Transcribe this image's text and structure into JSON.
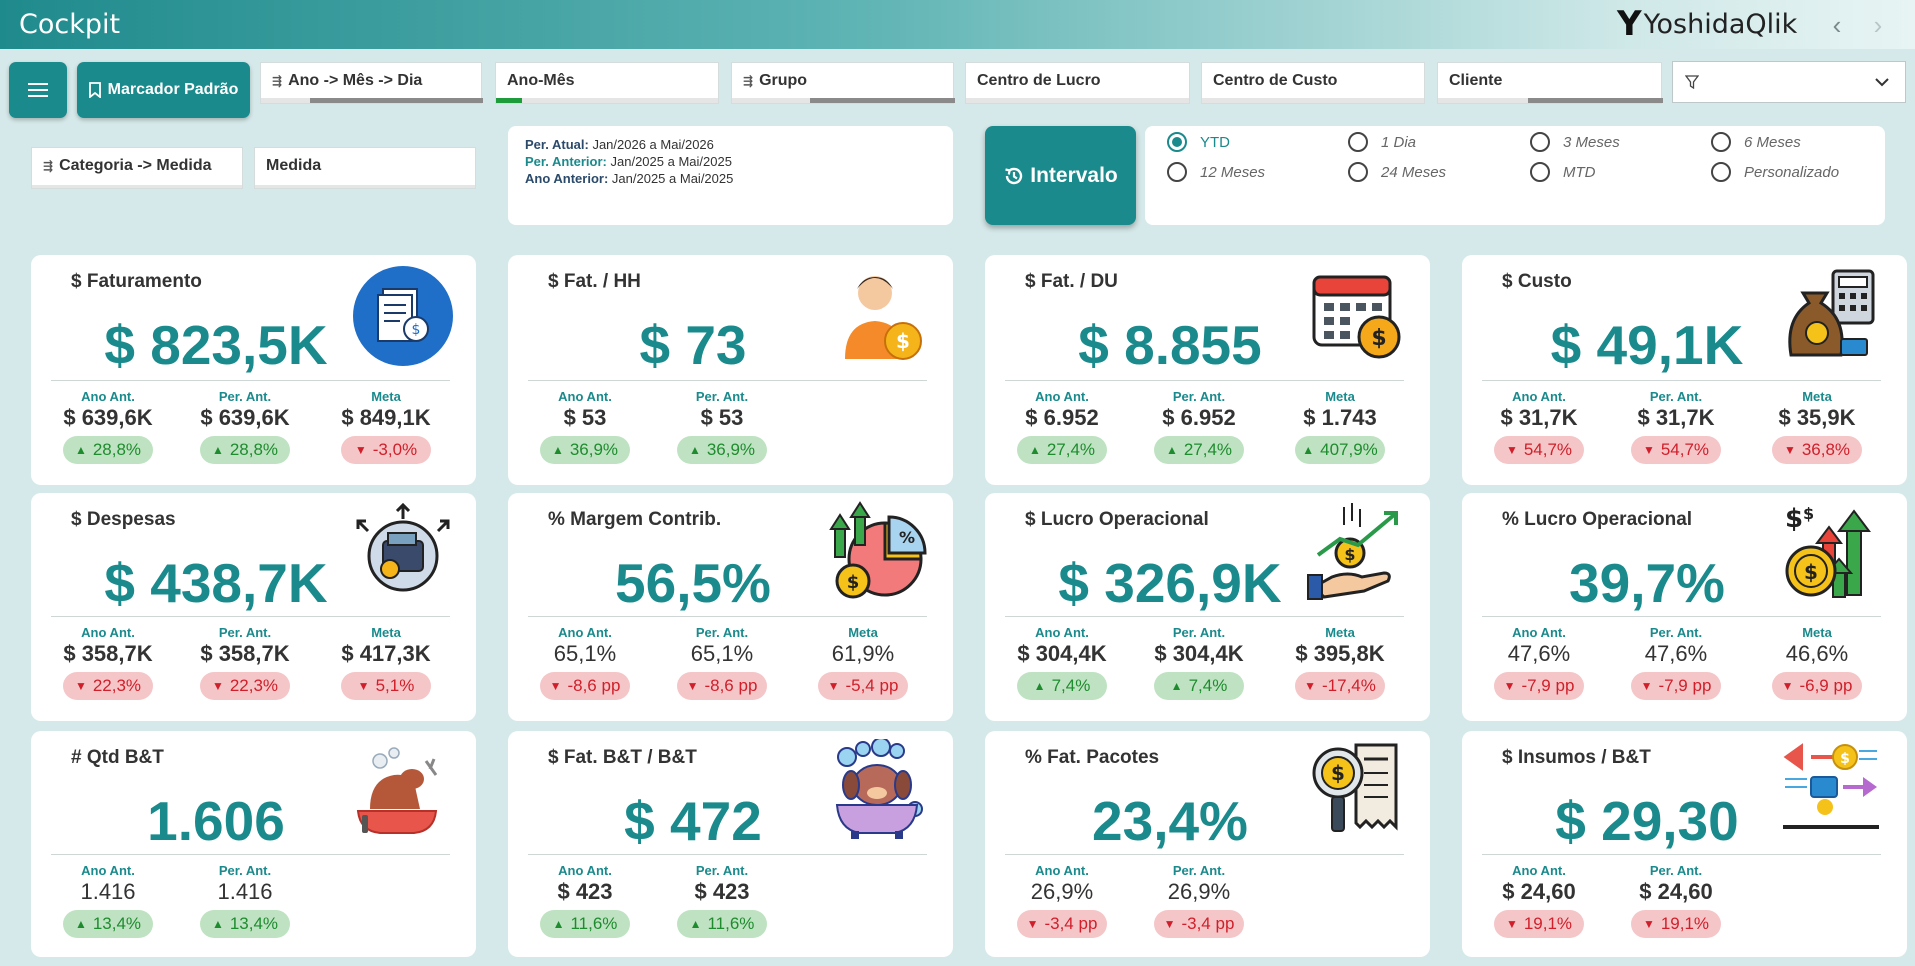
{
  "header": {
    "title": "Cockpit",
    "brand": "YoshidaQlik",
    "brand_mark": "Y"
  },
  "toolbar": {
    "bookmark_label": "Marcador Padrão"
  },
  "filters": {
    "ano_mes_dia": "Ano -> Mês -> Dia",
    "ano_mes": "Ano-Mês",
    "grupo": "Grupo",
    "centro_lucro": "Centro de Lucro",
    "centro_custo": "Centro de Custo",
    "cliente": "Cliente",
    "categoria_medida": "Categoria -> Medida",
    "medida": "Medida"
  },
  "period": {
    "atual_label": "Per. Atual:",
    "atual_value": "Jan/2026 a Mai/2026",
    "anterior_label": "Per. Anterior:",
    "anterior_value": "Jan/2025 a Mai/2025",
    "ano_anterior_label": "Ano Anterior:",
    "ano_anterior_value": "Jan/2025 a Mai/2025"
  },
  "intervalo": {
    "label": "Intervalo"
  },
  "ranges": [
    {
      "label": "YTD",
      "selected": true
    },
    {
      "label": "1 Dia",
      "selected": false
    },
    {
      "label": "3 Meses",
      "selected": false
    },
    {
      "label": "6 Meses",
      "selected": false
    },
    {
      "label": "12 Meses",
      "selected": false
    },
    {
      "label": "24 Meses",
      "selected": false
    },
    {
      "label": "MTD",
      "selected": false
    },
    {
      "label": "Personalizado",
      "selected": false
    }
  ],
  "labels": {
    "ano_ant": "Ano Ant.",
    "per_ant": "Per. Ant.",
    "meta": "Meta"
  },
  "cards": [
    {
      "title": "$ Faturamento",
      "value": "$ 823,5K",
      "icon": "document-dollar-icon",
      "ano_ant": "$ 639,6K",
      "ano_ant_var": "28,8%",
      "ano_ant_dir": "up",
      "per_ant": "$ 639,6K",
      "per_ant_var": "28,8%",
      "per_ant_dir": "up",
      "meta": "$ 849,1K",
      "meta_var": "-3,0%",
      "meta_dir": "down"
    },
    {
      "title": "$ Fat. / HH",
      "value": "$ 73",
      "icon": "person-coin-icon",
      "ano_ant": "$ 53",
      "ano_ant_var": "36,9%",
      "ano_ant_dir": "up",
      "per_ant": "$ 53",
      "per_ant_var": "36,9%",
      "per_ant_dir": "up"
    },
    {
      "title": "$ Fat. / DU",
      "value": "$ 8.855",
      "icon": "calendar-coin-icon",
      "ano_ant": "$ 6.952",
      "ano_ant_var": "27,4%",
      "ano_ant_dir": "up",
      "per_ant": "$ 6.952",
      "per_ant_var": "27,4%",
      "per_ant_dir": "up",
      "meta": "$ 1.743",
      "meta_var": "407,9%",
      "meta_dir": "up"
    },
    {
      "title": "$ Custo",
      "value": "$ 49,1K",
      "icon": "money-bag-calculator-icon",
      "ano_ant": "$ 31,7K",
      "ano_ant_var": "54,7%",
      "ano_ant_dir": "down",
      "per_ant": "$ 31,7K",
      "per_ant_var": "54,7%",
      "per_ant_dir": "down",
      "meta": "$ 35,9K",
      "meta_var": "36,8%",
      "meta_dir": "down"
    },
    {
      "title": "$ Despesas",
      "value": "$ 438,7K",
      "icon": "wallet-arrows-icon",
      "ano_ant": "$ 358,7K",
      "ano_ant_var": "22,3%",
      "ano_ant_dir": "down",
      "per_ant": "$ 358,7K",
      "per_ant_var": "22,3%",
      "per_ant_dir": "down",
      "meta": "$ 417,3K",
      "meta_var": "5,1%",
      "meta_dir": "down"
    },
    {
      "title": "% Margem Contrib.",
      "value": "56,5%",
      "icon": "pie-chart-coin-icon",
      "ano_ant": "65,1%",
      "ano_ant_var": "-8,6 pp",
      "ano_ant_dir": "down",
      "per_ant": "65,1%",
      "per_ant_var": "-8,6 pp",
      "per_ant_dir": "down",
      "meta": "61,9%",
      "meta_var": "-5,4 pp",
      "meta_dir": "down"
    },
    {
      "title": "$ Lucro Operacional",
      "value": "$ 326,9K",
      "icon": "hand-growth-icon",
      "ano_ant": "$ 304,4K",
      "ano_ant_var": "7,4%",
      "ano_ant_dir": "up",
      "per_ant": "$ 304,4K",
      "per_ant_var": "7,4%",
      "per_ant_dir": "up",
      "meta": "$ 395,8K",
      "meta_var": "-17,4%",
      "meta_dir": "down"
    },
    {
      "title": "% Lucro Operacional",
      "value": "39,7%",
      "icon": "coins-arrows-icon",
      "ano_ant": "47,6%",
      "ano_ant_var": "-7,9 pp",
      "ano_ant_dir": "down",
      "per_ant": "47,6%",
      "per_ant_var": "-7,9 pp",
      "per_ant_dir": "down",
      "meta": "46,6%",
      "meta_var": "-6,9 pp",
      "meta_dir": "down"
    },
    {
      "title": "# Qtd B&T",
      "value": "1.606",
      "icon": "dog-bath-icon",
      "ano_ant": "1.416",
      "ano_ant_var": "13,4%",
      "ano_ant_dir": "up",
      "per_ant": "1.416",
      "per_ant_var": "13,4%",
      "per_ant_dir": "up"
    },
    {
      "title": "$ Fat. B&T / B&T",
      "value": "$ 472",
      "icon": "dog-bathtub-icon",
      "ano_ant": "$ 423",
      "ano_ant_var": "11,6%",
      "ano_ant_dir": "up",
      "per_ant": "$ 423",
      "per_ant_var": "11,6%",
      "per_ant_dir": "up"
    },
    {
      "title": "% Fat. Pacotes",
      "value": "23,4%",
      "icon": "magnifier-receipt-icon",
      "ano_ant": "26,9%",
      "ano_ant_var": "-3,4 pp",
      "ano_ant_dir": "down",
      "per_ant": "26,9%",
      "per_ant_var": "-3,4 pp",
      "per_ant_dir": "down"
    },
    {
      "title": "$ Insumos / B&T",
      "value": "$ 29,30",
      "icon": "exchange-briefcase-icon",
      "ano_ant": "$ 24,60",
      "ano_ant_var": "19,1%",
      "ano_ant_dir": "down",
      "per_ant": "$ 24,60",
      "per_ant_var": "19,1%",
      "per_ant_dir": "down"
    }
  ],
  "colors": {
    "accent": "#1a8a8c",
    "up_bg": "#bfe3c2",
    "up_fg": "#1e8c2e",
    "down_bg": "#f5c6c8",
    "down_fg": "#d01f2a"
  }
}
